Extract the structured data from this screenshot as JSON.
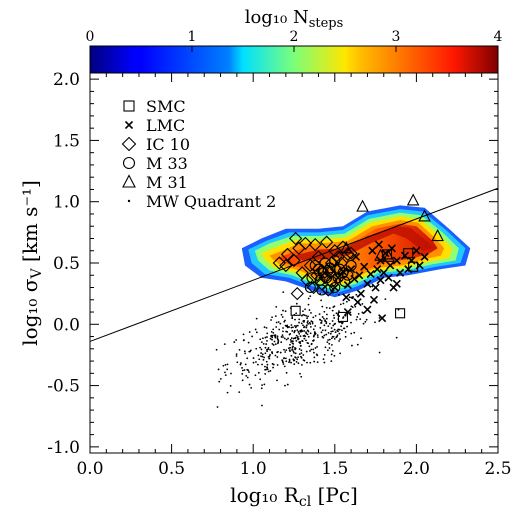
{
  "chart_data": {
    "type": "scatter",
    "xlabel": "log₁₀ R",
    "xlabel_sub": "cl",
    "xlabel_unit": "[Pc]",
    "ylabel": "log₁₀ σ",
    "ylabel_sub": "V",
    "ylabel_unit": "[km s⁻¹]",
    "xlim": [
      0.0,
      2.5
    ],
    "ylim": [
      -1.05,
      2.05
    ],
    "x_ticks": [
      "0.0",
      "0.5",
      "1.0",
      "1.5",
      "2.0",
      "2.5"
    ],
    "y_ticks": [
      "-1.0",
      "-0.5",
      "0.0",
      "0.5",
      "1.0",
      "1.5",
      "2.0"
    ],
    "colorbar": {
      "label": "log₁₀ N",
      "label_sub": "steps",
      "ticks": [
        "0",
        "1",
        "2",
        "3",
        "4"
      ],
      "range": [
        0,
        4
      ],
      "colormap": "jet"
    },
    "legend_placement": "top-left",
    "legend": [
      {
        "label": "SMC",
        "marker": "square"
      },
      {
        "label": "LMC",
        "marker": "x"
      },
      {
        "label": "IC 10",
        "marker": "diamond"
      },
      {
        "label": "M 33",
        "marker": "circle"
      },
      {
        "label": "M 31",
        "marker": "triangle"
      },
      {
        "label": "MW Quadrant 2",
        "marker": "dot"
      }
    ],
    "fit_line": {
      "slope": 0.5,
      "intercept": -0.14
    },
    "series": [
      {
        "name": "SMC",
        "marker": "square",
        "points": [
          [
            1.55,
            0.06
          ],
          [
            1.9,
            0.09
          ],
          [
            1.82,
            0.57
          ],
          [
            1.95,
            0.58
          ],
          [
            1.98,
            0.47
          ],
          [
            1.26,
            0.11
          ]
        ]
      },
      {
        "name": "LMC",
        "marker": "x",
        "points": [
          [
            1.52,
            0.38
          ],
          [
            1.55,
            0.43
          ],
          [
            1.58,
            0.32
          ],
          [
            1.6,
            0.45
          ],
          [
            1.62,
            0.37
          ],
          [
            1.63,
            0.55
          ],
          [
            1.65,
            0.4
          ],
          [
            1.66,
            0.25
          ],
          [
            1.68,
            0.47
          ],
          [
            1.7,
            0.33
          ],
          [
            1.72,
            0.41
          ],
          [
            1.73,
            0.6
          ],
          [
            1.75,
            0.3
          ],
          [
            1.76,
            0.45
          ],
          [
            1.78,
            0.52
          ],
          [
            1.78,
            0.36
          ],
          [
            1.8,
            0.42
          ],
          [
            1.81,
            0.58
          ],
          [
            1.83,
            0.38
          ],
          [
            1.84,
            0.48
          ],
          [
            1.85,
            0.62
          ],
          [
            1.86,
            0.3
          ],
          [
            1.88,
            0.52
          ],
          [
            1.9,
            0.42
          ],
          [
            1.93,
            0.56
          ],
          [
            1.95,
            0.45
          ],
          [
            1.97,
            0.52
          ],
          [
            2.0,
            0.6
          ],
          [
            2.02,
            0.48
          ],
          [
            2.05,
            0.55
          ],
          [
            1.57,
            0.22
          ],
          [
            1.64,
            0.18
          ],
          [
            1.7,
            0.12
          ],
          [
            1.74,
            0.2
          ],
          [
            1.77,
            0.65
          ],
          [
            1.5,
            0.3
          ],
          [
            1.58,
            0.1
          ],
          [
            1.88,
            0.33
          ],
          [
            1.79,
            0.05
          ]
        ]
      },
      {
        "name": "IC 10",
        "marker": "diamond",
        "points": [
          [
            1.2,
            0.48
          ],
          [
            1.25,
            0.52
          ],
          [
            1.28,
            0.62
          ],
          [
            1.32,
            0.66
          ],
          [
            1.38,
            0.65
          ],
          [
            1.45,
            0.67
          ],
          [
            1.5,
            0.6
          ],
          [
            1.55,
            0.63
          ],
          [
            1.3,
            0.42
          ],
          [
            1.35,
            0.48
          ],
          [
            1.4,
            0.55
          ],
          [
            1.42,
            0.44
          ],
          [
            1.48,
            0.5
          ],
          [
            1.52,
            0.55
          ],
          [
            1.58,
            0.57
          ],
          [
            1.27,
            0.25
          ],
          [
            1.33,
            0.36
          ],
          [
            1.37,
            0.3
          ],
          [
            1.44,
            0.38
          ],
          [
            1.47,
            0.42
          ],
          [
            1.51,
            0.45
          ],
          [
            1.54,
            0.5
          ],
          [
            1.6,
            0.58
          ],
          [
            1.39,
            0.4
          ],
          [
            1.42,
            0.33
          ],
          [
            1.46,
            0.28
          ],
          [
            1.26,
            0.7
          ],
          [
            1.21,
            0.57
          ],
          [
            1.16,
            0.5
          ]
        ]
      },
      {
        "name": "M 33",
        "marker": "circle",
        "points": [
          [
            1.4,
            0.45
          ],
          [
            1.45,
            0.38
          ],
          [
            1.5,
            0.52
          ],
          [
            1.53,
            0.45
          ],
          [
            1.36,
            0.38
          ],
          [
            1.43,
            0.42
          ],
          [
            1.48,
            0.35
          ],
          [
            1.55,
            0.42
          ],
          [
            1.6,
            0.48
          ],
          [
            1.35,
            0.3
          ],
          [
            1.42,
            0.28
          ],
          [
            1.47,
            0.46
          ],
          [
            1.52,
            0.38
          ],
          [
            1.56,
            0.35
          ],
          [
            1.38,
            0.48
          ],
          [
            1.44,
            0.5
          ],
          [
            1.58,
            0.4
          ],
          [
            1.5,
            0.3
          ],
          [
            1.46,
            0.44
          ],
          [
            1.41,
            0.36
          ]
        ]
      },
      {
        "name": "M 31",
        "marker": "triangle",
        "points": [
          [
            1.57,
            0.62
          ],
          [
            1.67,
            0.96
          ],
          [
            1.98,
            1.01
          ],
          [
            2.05,
            0.88
          ],
          [
            2.13,
            0.72
          ],
          [
            1.78,
            0.56
          ],
          [
            1.83,
            0.55
          ]
        ]
      }
    ]
  }
}
